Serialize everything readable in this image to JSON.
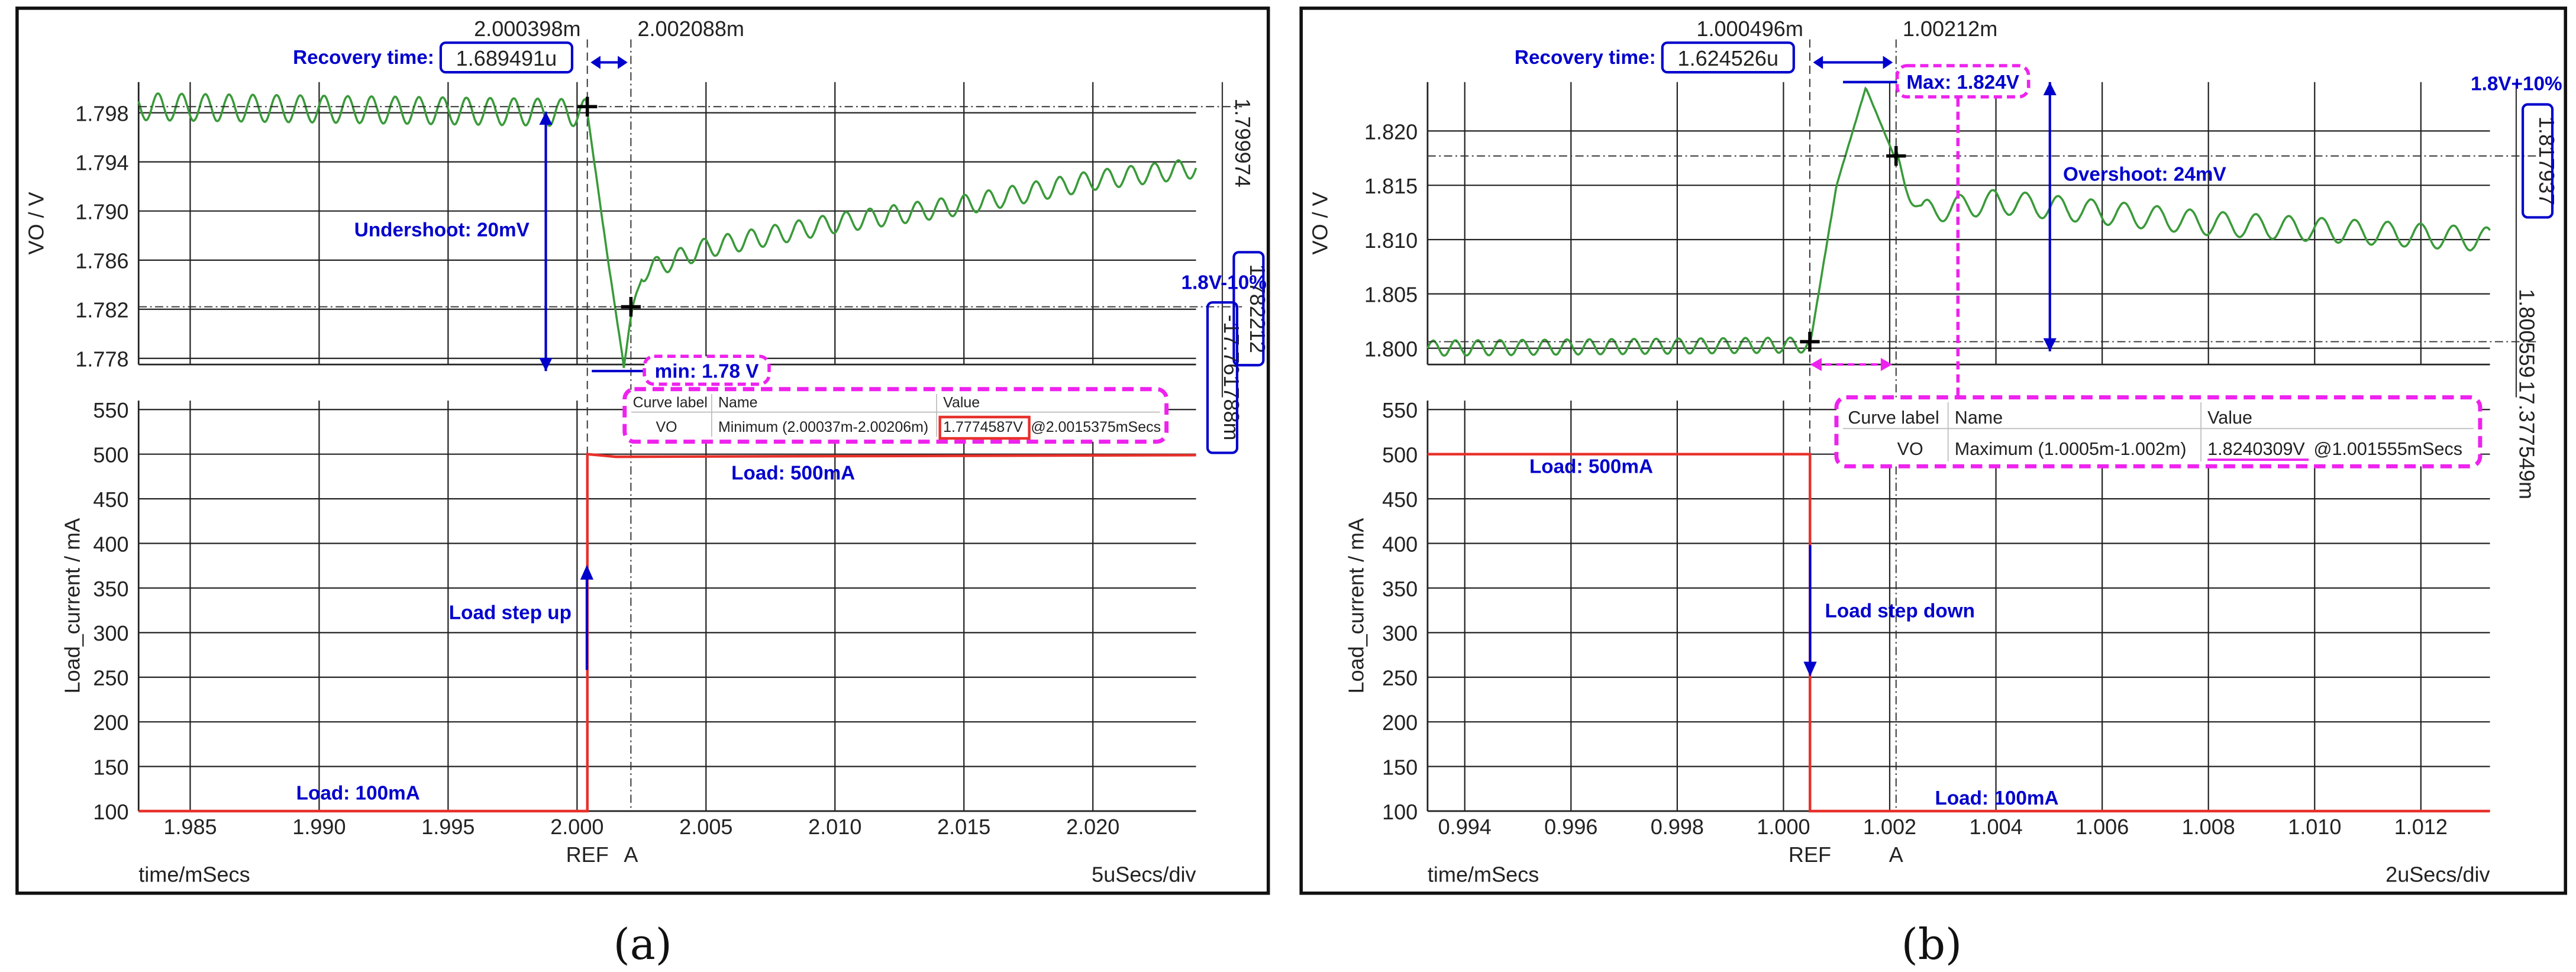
{
  "colors": {
    "vo_trace": "#3a9a3a",
    "load_trace": "#e8302a",
    "annotation": "#0000cc",
    "measure_box": "#ee22ee",
    "value_highlight": "#e8302a",
    "grid": "#222222"
  },
  "icons": [
    "cursor-crosshair-icon",
    "arrow-icon"
  ],
  "captions": [
    "(a)",
    "(b)"
  ],
  "chart_data": [
    {
      "type": "line",
      "panel": "a",
      "xlabel": "time/mSecs",
      "x_ticks": [
        "1.985",
        "1.990",
        "1.995",
        "2.000",
        "2.005",
        "2.010",
        "2.015",
        "2.020"
      ],
      "xlim": [
        1.983,
        2.024
      ],
      "x_scale": "5uSecs/div",
      "ref_label": "REF",
      "cursor_label": "A",
      "top": {
        "ylabel": "VO / V",
        "y_ticks": [
          "1.778",
          "1.782",
          "1.786",
          "1.790",
          "1.794",
          "1.798"
        ],
        "ylim": [
          1.7775,
          1.8005
        ],
        "series": [
          {
            "x": [
              1.983,
              2.0004,
              2.0012,
              2.0018,
              2.0025,
              2.005,
              2.01,
              2.015,
              2.02,
              2.024
            ],
            "values": [
              1.7985,
              1.798,
              1.786,
              1.7776,
              1.785,
              1.787,
              1.789,
              1.7905,
              1.7925,
              1.7935
            ]
          }
        ],
        "right_values": [
          "1.799974",
          "1.782212",
          "-17.761788m"
        ],
        "limit_label": "1.8V-10%"
      },
      "bottom": {
        "ylabel": "Load_current / mA",
        "y_ticks": [
          "100",
          "150",
          "200",
          "250",
          "300",
          "350",
          "400",
          "450",
          "500",
          "550"
        ],
        "ylim": [
          100,
          560
        ],
        "series": [
          {
            "x": [
              1.983,
              2.0004,
              2.0004,
              2.0015,
              2.024
            ],
            "values": [
              100,
              100,
              500,
              497,
              499
            ]
          }
        ]
      },
      "cursor_top": {
        "left": "2.000398m",
        "right": "2.002088m"
      },
      "recovery": {
        "label": "Recovery time:",
        "value": "1.689491u"
      },
      "annotations": {
        "excursion": "Undershoot: 20mV",
        "extreme": "min: 1.78 V",
        "load_high": "Load: 500mA",
        "load_low": "Load: 100mA",
        "step": "Load step up"
      },
      "measure_table": {
        "headers": [
          "Curve label",
          "Name",
          "Value"
        ],
        "row": {
          "curve": "VO",
          "name": "Minimum (2.00037m-2.00206m)",
          "value": "1.7774587V",
          "at": "@2.0015375mSecs"
        }
      }
    },
    {
      "type": "line",
      "panel": "b",
      "xlabel": "time/mSecs",
      "x_ticks": [
        "0.994",
        "0.996",
        "0.998",
        "1.000",
        "1.002",
        "1.004",
        "1.006",
        "1.008",
        "1.010",
        "1.012"
      ],
      "xlim": [
        0.9933,
        1.0133
      ],
      "x_scale": "2uSecs/div",
      "ref_label": "REF",
      "cursor_label": "A",
      "top": {
        "ylabel": "VO / V",
        "y_ticks": [
          "1.800",
          "1.805",
          "1.810",
          "1.815",
          "1.820"
        ],
        "ylim": [
          1.7985,
          1.8245
        ],
        "series": [
          {
            "x": [
              0.9933,
              1.0005,
              1.001,
              1.00155,
              1.0021,
              1.0026,
              1.004,
              1.008,
              1.0133
            ],
            "values": [
              1.8,
              1.8003,
              1.815,
              1.824,
              1.8175,
              1.8125,
              1.8135,
              1.8115,
              1.81
            ]
          }
        ],
        "right_values": [
          "1.817937",
          "1.800559",
          "17.377549m"
        ],
        "limit_label": "1.8V+10%"
      },
      "bottom": {
        "ylabel": "Load_current / mA",
        "y_ticks": [
          "100",
          "150",
          "200",
          "250",
          "300",
          "350",
          "400",
          "450",
          "500",
          "550"
        ],
        "ylim": [
          100,
          560
        ],
        "series": [
          {
            "x": [
              0.9933,
              1.0005,
              1.0005,
              1.0133
            ],
            "values": [
              500,
              500,
              100,
              100
            ]
          }
        ]
      },
      "cursor_top": {
        "left": "1.000496m",
        "right": "1.00212m"
      },
      "recovery": {
        "label": "Recovery time:",
        "value": "1.624526u"
      },
      "annotations": {
        "excursion": "Overshoot: 24mV",
        "extreme": "Max: 1.824V",
        "load_high": "Load: 500mA",
        "load_low": "Load: 100mA",
        "step": "Load step down"
      },
      "measure_table": {
        "headers": [
          "Curve label",
          "Name",
          "Value"
        ],
        "row": {
          "curve": "VO",
          "name": "Maximum (1.0005m-1.002m)",
          "value": "1.8240309V",
          "at": "@1.001555mSecs"
        }
      }
    }
  ]
}
